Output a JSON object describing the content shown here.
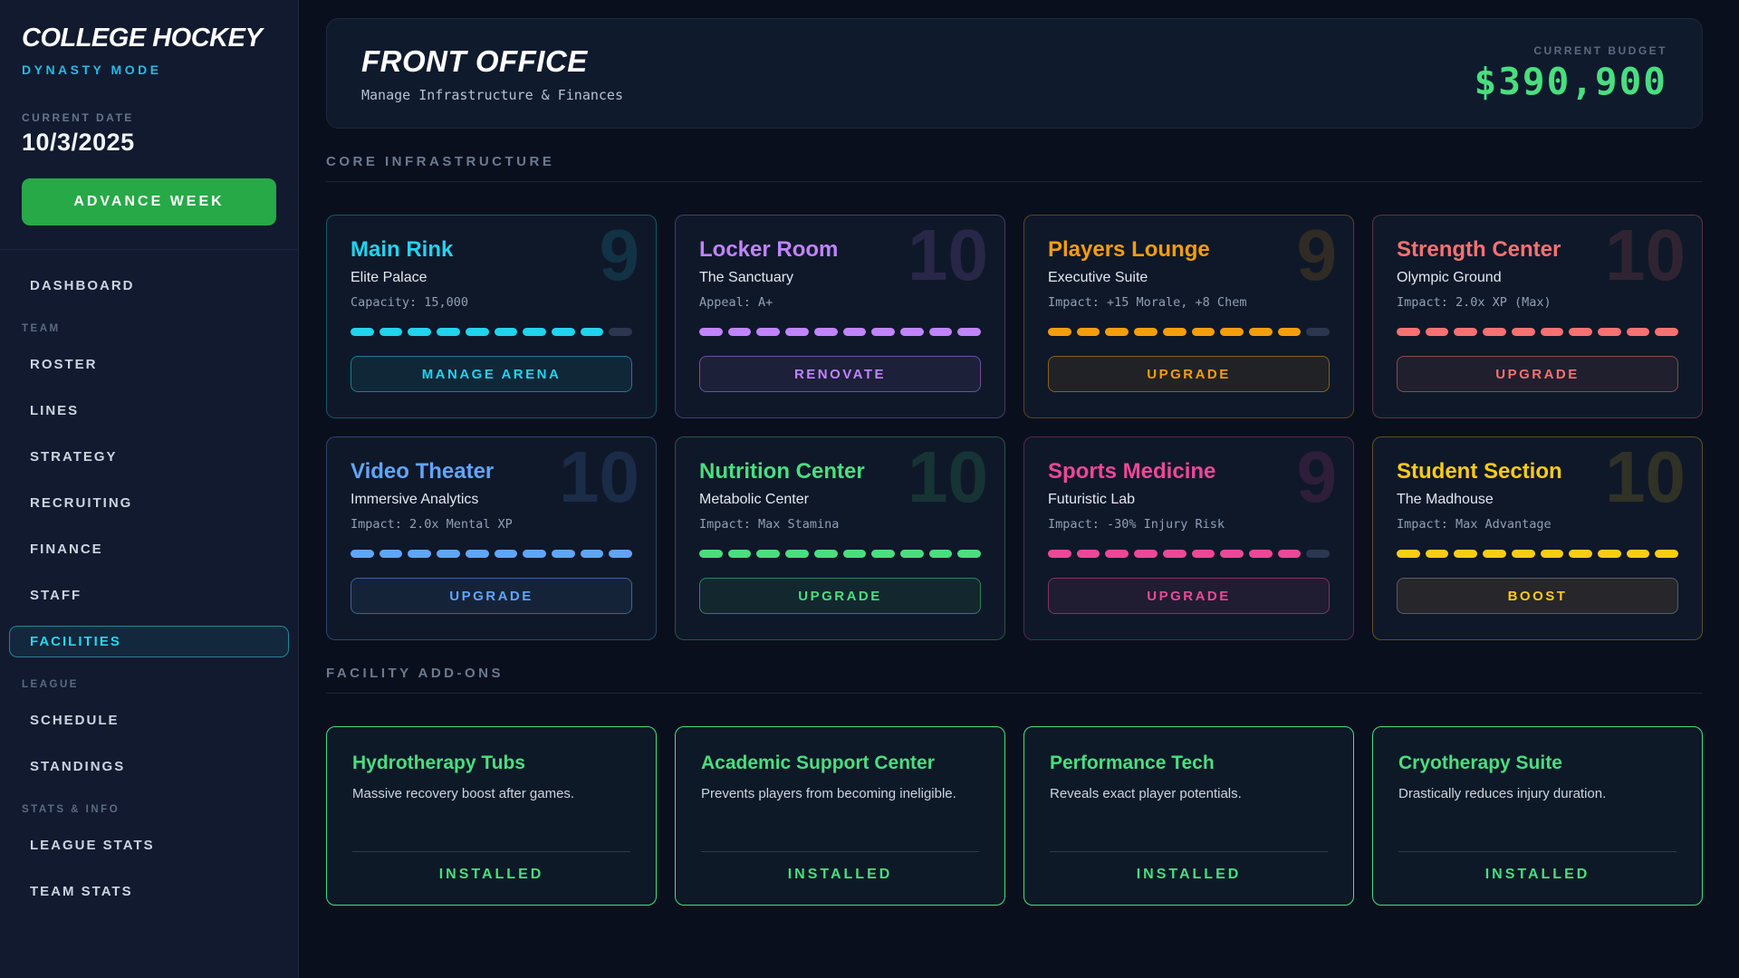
{
  "app": {
    "title": "COLLEGE HOCKEY",
    "subtitle": "DYNASTY MODE"
  },
  "sidebar": {
    "current_date_label": "CURRENT DATE",
    "current_date": "10/3/2025",
    "advance_week_label": "ADVANCE WEEK",
    "nav": [
      {
        "type": "item",
        "label": "DASHBOARD",
        "active": false
      },
      {
        "type": "section",
        "label": "TEAM"
      },
      {
        "type": "item",
        "label": "ROSTER",
        "active": false
      },
      {
        "type": "item",
        "label": "LINES",
        "active": false
      },
      {
        "type": "item",
        "label": "STRATEGY",
        "active": false
      },
      {
        "type": "item",
        "label": "RECRUITING",
        "active": false
      },
      {
        "type": "item",
        "label": "FINANCE",
        "active": false
      },
      {
        "type": "item",
        "label": "STAFF",
        "active": false
      },
      {
        "type": "item",
        "label": "FACILITIES",
        "active": true
      },
      {
        "type": "section",
        "label": "LEAGUE"
      },
      {
        "type": "item",
        "label": "SCHEDULE",
        "active": false
      },
      {
        "type": "item",
        "label": "STANDINGS",
        "active": false
      },
      {
        "type": "section",
        "label": "STATS & INFO"
      },
      {
        "type": "item",
        "label": "LEAGUE STATS",
        "active": false
      },
      {
        "type": "item",
        "label": "TEAM STATS",
        "active": false
      }
    ]
  },
  "header": {
    "title": "FRONT OFFICE",
    "subtitle": "Manage Infrastructure & Finances",
    "budget_label": "CURRENT BUDGET",
    "budget_value": "$390,900"
  },
  "sections": {
    "core_infrastructure": "CORE INFRASTRUCTURE",
    "facility_addons": "FACILITY ADD-ONS"
  },
  "facilities": [
    {
      "name": "Main Rink",
      "tier": "Elite Palace",
      "detail": "Capacity: 15,000",
      "level": 9,
      "max_level": 10,
      "color": "#22d3ee",
      "action": "MANAGE ARENA",
      "action_variant": "accent"
    },
    {
      "name": "Locker Room",
      "tier": "The Sanctuary",
      "detail": "Appeal: A+",
      "level": 10,
      "max_level": 10,
      "color": "#c084fc",
      "action": "RENOVATE",
      "action_variant": "accent"
    },
    {
      "name": "Players Lounge",
      "tier": "Executive Suite",
      "detail": "Impact: +15 Morale, +8 Chem",
      "level": 9,
      "max_level": 10,
      "color": "#f59e0b",
      "action": "UPGRADE",
      "action_variant": "accent"
    },
    {
      "name": "Strength Center",
      "tier": "Olympic Ground",
      "detail": "Impact: 2.0x XP (Max)",
      "level": 10,
      "max_level": 10,
      "color": "#f87171",
      "action": "UPGRADE",
      "action_variant": "accent"
    },
    {
      "name": "Video Theater",
      "tier": "Immersive Analytics",
      "detail": "Impact: 2.0x Mental XP",
      "level": 10,
      "max_level": 10,
      "color": "#60a5fa",
      "action": "UPGRADE",
      "action_variant": "accent"
    },
    {
      "name": "Nutrition Center",
      "tier": "Metabolic Center",
      "detail": "Impact: Max Stamina",
      "level": 10,
      "max_level": 10,
      "color": "#4ade80",
      "action": "UPGRADE",
      "action_variant": "accent"
    },
    {
      "name": "Sports Medicine",
      "tier": "Futuristic Lab",
      "detail": "Impact: -30% Injury Risk",
      "level": 9,
      "max_level": 10,
      "color": "#ec4899",
      "action": "UPGRADE",
      "action_variant": "accent"
    },
    {
      "name": "Student Section",
      "tier": "The Madhouse",
      "detail": "Impact: Max Advantage",
      "level": 10,
      "max_level": 10,
      "color": "#facc15",
      "action": "BOOST",
      "action_variant": "neutral"
    }
  ],
  "addons": [
    {
      "name": "Hydrotherapy Tubs",
      "description": "Massive recovery boost after games.",
      "status": "INSTALLED"
    },
    {
      "name": "Academic Support Center",
      "description": "Prevents players from becoming ineligible.",
      "status": "INSTALLED"
    },
    {
      "name": "Performance Tech",
      "description": "Reveals exact player potentials.",
      "status": "INSTALLED"
    },
    {
      "name": "Cryotherapy Suite",
      "description": "Drastically reduces injury duration.",
      "status": "INSTALLED"
    }
  ],
  "colors": {
    "sidebar_bg": "#111a2e",
    "page_bg": "#0a0f1d",
    "card_bg": "#0f1829",
    "accent_cyan": "#2dd4ee",
    "dynasty_mode_cyan": "#29b9e6",
    "advance_week_green": "#27a948",
    "budget_green": "#4ade80",
    "addon_green": "#4ade80",
    "muted_text": "#64748b"
  }
}
